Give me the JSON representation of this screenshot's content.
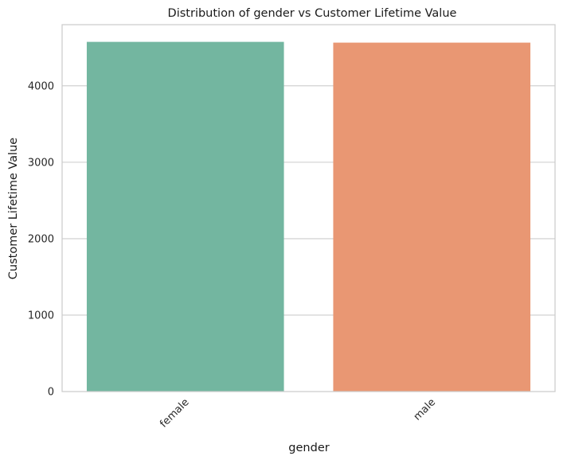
{
  "chart_data": {
    "type": "bar",
    "title": "Distribution of gender vs Customer Lifetime Value",
    "xlabel": "gender",
    "ylabel": "Customer Lifetime Value",
    "categories": [
      "female",
      "male"
    ],
    "values": [
      4575,
      4565
    ],
    "colors": [
      "#73b6a0",
      "#e99773"
    ],
    "ylim": [
      0,
      4800
    ],
    "yticks": [
      0,
      1000,
      2000,
      3000,
      4000
    ],
    "ytick_labels": [
      "0",
      "1000",
      "2000",
      "3000",
      "4000"
    ],
    "xtick_rotation_deg": 45,
    "grid": "horizontal",
    "legend": "none"
  }
}
